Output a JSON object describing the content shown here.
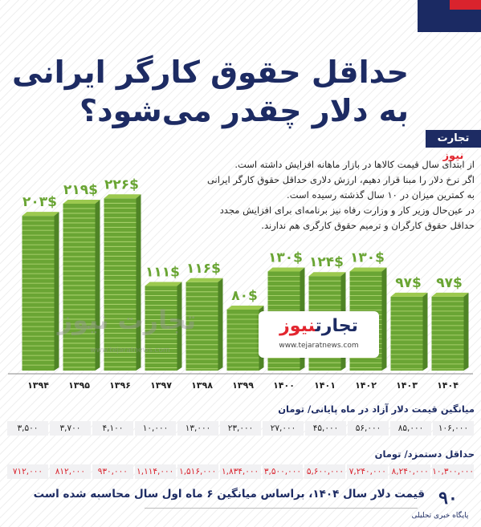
{
  "title": {
    "line1": "حداقل حقوق کارگر ایرانی",
    "line2": "به دلار چقدر می‌شود؟"
  },
  "brand": {
    "part1": "تجارت",
    "part2": "نیوز",
    "url": "www.tejaratnews.com"
  },
  "intro": [
    "از ابتدای سال قیمت کالاها در بازار ماهانه افزایش داشته است.",
    "اگر نرخ دلار را مبنا قرار دهیم، ارزش دلاری حداقل حقوق کارگر ایرانی",
    "به کمترین میزان در ۱۰ سال گذشته رسیده است.",
    "در عین‌حال وزیر کار و وزارت رفاه نیز برنامه‌ای برای افزایش مجدد",
    "حداقل حقوق کارگران و ترمیم حقوق کارگری هم ندارند."
  ],
  "colors": {
    "brand_navy": "#1d2b63",
    "brand_red": "#d9232d",
    "bar_green": "#6aa534",
    "bar_green_light": "#9cc94f"
  },
  "chart_data": {
    "type": "bar",
    "categories": [
      "۱۳۹۴",
      "۱۳۹۵",
      "۱۳۹۶",
      "۱۳۹۷",
      "۱۳۹۸",
      "۱۳۹۹",
      "۱۴۰۰",
      "۱۴۰۱",
      "۱۴۰۲",
      "۱۴۰۳",
      "۱۴۰۴"
    ],
    "values": [
      203,
      219,
      226,
      111,
      116,
      80,
      130,
      124,
      130,
      97,
      97
    ],
    "value_labels": [
      "۲۰۳$",
      "۲۱۹$",
      "۲۲۶$",
      "۱۱۱$",
      "۱۱۶$",
      "۸۰$",
      "۱۳۰$",
      "۱۲۴$",
      "۱۳۰$",
      "۹۷$",
      "۹۷$"
    ],
    "title": "",
    "xlabel": "",
    "ylabel": "",
    "ylim": [
      0,
      240
    ],
    "grid": false
  },
  "tables": {
    "dollar_label": "میانگین قیمت دلار آزاد در ماه پایانی/ تومان",
    "dollar_values": [
      "۳,۵۰۰",
      "۳,۷۰۰",
      "۴,۱۰۰",
      "۱۰,۰۰۰",
      "۱۳,۰۰۰",
      "۲۳,۰۰۰",
      "۲۷,۰۰۰",
      "۴۵,۰۰۰",
      "۵۶,۰۰۰",
      "۸۵,۰۰۰",
      "۱۰۶,۰۰۰"
    ],
    "wage_label": "حداقل دستمزد/ تومان",
    "wage_values": [
      "۷۱۲,۰۰۰",
      "۸۱۲,۰۰۰",
      "۹۳۰,۰۰۰",
      "۱,۱۱۴,۰۰۰",
      "۱,۵۱۶,۰۰۰",
      "۱,۸۳۴,۰۰۰",
      "۳,۵۰۰,۰۰۰",
      "۵,۶۰۰,۰۰۰",
      "۷,۲۴۰,۰۰۰",
      "۸,۲۴۰,۰۰۰",
      "۱۰,۳۰۰,۰۰۰"
    ]
  },
  "footer": {
    "note": "قیمت دلار سال ۱۴۰۴، براساس میانگین ۶ ماه اول سال محاسبه شده است"
  },
  "source": {
    "number": "۹۰",
    "name": "پایگاه خبری تحلیلی"
  }
}
